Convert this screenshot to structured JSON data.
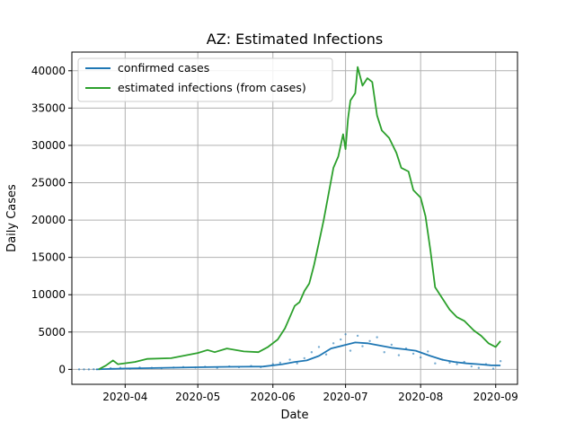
{
  "chart_data": {
    "type": "line",
    "title": "AZ: Estimated Infections",
    "xlabel": "Date",
    "ylabel": "Daily Cases",
    "x_ticks": [
      "2020-04",
      "2020-05",
      "2020-06",
      "2020-07",
      "2020-08",
      "2020-09"
    ],
    "y_ticks": [
      0,
      5000,
      10000,
      15000,
      20000,
      25000,
      30000,
      35000,
      40000
    ],
    "xlim": [
      "2020-03-10",
      "2020-09-10"
    ],
    "ylim": [
      -2000,
      42500
    ],
    "grid": true,
    "legend_position": "top-left",
    "series": [
      {
        "name": "confirmed cases",
        "color": "#1f77b4",
        "points": [
          [
            "2020-03-20",
            0
          ],
          [
            "2020-03-25",
            60
          ],
          [
            "2020-04-01",
            120
          ],
          [
            "2020-04-10",
            170
          ],
          [
            "2020-04-20",
            220
          ],
          [
            "2020-05-01",
            280
          ],
          [
            "2020-05-10",
            330
          ],
          [
            "2020-05-20",
            360
          ],
          [
            "2020-05-28",
            380
          ],
          [
            "2020-06-05",
            700
          ],
          [
            "2020-06-10",
            1000
          ],
          [
            "2020-06-15",
            1200
          ],
          [
            "2020-06-20",
            1800
          ],
          [
            "2020-06-25",
            2800
          ],
          [
            "2020-06-30",
            3200
          ],
          [
            "2020-07-05",
            3600
          ],
          [
            "2020-07-10",
            3500
          ],
          [
            "2020-07-15",
            3200
          ],
          [
            "2020-07-20",
            2900
          ],
          [
            "2020-07-25",
            2700
          ],
          [
            "2020-07-30",
            2500
          ],
          [
            "2020-08-05",
            1800
          ],
          [
            "2020-08-10",
            1300
          ],
          [
            "2020-08-15",
            1000
          ],
          [
            "2020-08-20",
            800
          ],
          [
            "2020-08-25",
            700
          ],
          [
            "2020-08-30",
            550
          ],
          [
            "2020-09-03",
            520
          ]
        ]
      },
      {
        "name": "estimated infections (from cases)",
        "color": "#2ca02c",
        "points": [
          [
            "2020-03-21",
            0
          ],
          [
            "2020-03-24",
            500
          ],
          [
            "2020-03-27",
            1200
          ],
          [
            "2020-03-29",
            700
          ],
          [
            "2020-04-05",
            1000
          ],
          [
            "2020-04-10",
            1400
          ],
          [
            "2020-04-20",
            1500
          ],
          [
            "2020-05-01",
            2200
          ],
          [
            "2020-05-05",
            2600
          ],
          [
            "2020-05-08",
            2300
          ],
          [
            "2020-05-13",
            2800
          ],
          [
            "2020-05-20",
            2400
          ],
          [
            "2020-05-26",
            2300
          ],
          [
            "2020-05-30",
            3000
          ],
          [
            "2020-06-03",
            4000
          ],
          [
            "2020-06-06",
            5500
          ],
          [
            "2020-06-08",
            7000
          ],
          [
            "2020-06-10",
            8500
          ],
          [
            "2020-06-12",
            9000
          ],
          [
            "2020-06-14",
            10500
          ],
          [
            "2020-06-16",
            11500
          ],
          [
            "2020-06-18",
            14000
          ],
          [
            "2020-06-20",
            17000
          ],
          [
            "2020-06-22",
            20000
          ],
          [
            "2020-06-24",
            23500
          ],
          [
            "2020-06-26",
            27000
          ],
          [
            "2020-06-28",
            28500
          ],
          [
            "2020-06-30",
            31500
          ],
          [
            "2020-07-01",
            29500
          ],
          [
            "2020-07-02",
            33500
          ],
          [
            "2020-07-03",
            36000
          ],
          [
            "2020-07-05",
            37000
          ],
          [
            "2020-07-06",
            40500
          ],
          [
            "2020-07-08",
            38000
          ],
          [
            "2020-07-10",
            39000
          ],
          [
            "2020-07-12",
            38500
          ],
          [
            "2020-07-14",
            34000
          ],
          [
            "2020-07-16",
            32000
          ],
          [
            "2020-07-19",
            31000
          ],
          [
            "2020-07-22",
            29000
          ],
          [
            "2020-07-24",
            27000
          ],
          [
            "2020-07-27",
            26500
          ],
          [
            "2020-07-29",
            24000
          ],
          [
            "2020-08-01",
            23000
          ],
          [
            "2020-08-03",
            20500
          ],
          [
            "2020-08-05",
            16000
          ],
          [
            "2020-08-07",
            11000
          ],
          [
            "2020-08-10",
            9500
          ],
          [
            "2020-08-13",
            8000
          ],
          [
            "2020-08-16",
            7000
          ],
          [
            "2020-08-19",
            6500
          ],
          [
            "2020-08-23",
            5200
          ],
          [
            "2020-08-26",
            4500
          ],
          [
            "2020-08-29",
            3500
          ],
          [
            "2020-09-01",
            3000
          ],
          [
            "2020-09-03",
            3800
          ]
        ]
      }
    ],
    "scatter": {
      "color": "#1f77b4",
      "points": [
        [
          "2020-03-13",
          0
        ],
        [
          "2020-03-15",
          0
        ],
        [
          "2020-03-17",
          0
        ],
        [
          "2020-03-19",
          20
        ],
        [
          "2020-03-22",
          100
        ],
        [
          "2020-03-26",
          150
        ],
        [
          "2020-03-30",
          200
        ],
        [
          "2020-04-03",
          100
        ],
        [
          "2020-04-07",
          250
        ],
        [
          "2020-04-12",
          200
        ],
        [
          "2020-04-16",
          150
        ],
        [
          "2020-04-21",
          250
        ],
        [
          "2020-04-25",
          300
        ],
        [
          "2020-04-30",
          250
        ],
        [
          "2020-05-04",
          350
        ],
        [
          "2020-05-09",
          200
        ],
        [
          "2020-05-14",
          400
        ],
        [
          "2020-05-18",
          300
        ],
        [
          "2020-05-23",
          450
        ],
        [
          "2020-05-27",
          300
        ],
        [
          "2020-06-01",
          700
        ],
        [
          "2020-06-04",
          900
        ],
        [
          "2020-06-08",
          1300
        ],
        [
          "2020-06-11",
          800
        ],
        [
          "2020-06-14",
          1500
        ],
        [
          "2020-06-17",
          2300
        ],
        [
          "2020-06-20",
          3000
        ],
        [
          "2020-06-23",
          2000
        ],
        [
          "2020-06-26",
          3500
        ],
        [
          "2020-06-29",
          4000
        ],
        [
          "2020-07-01",
          4700
        ],
        [
          "2020-07-03",
          2500
        ],
        [
          "2020-07-06",
          4500
        ],
        [
          "2020-07-08",
          3100
        ],
        [
          "2020-07-11",
          3800
        ],
        [
          "2020-07-14",
          4300
        ],
        [
          "2020-07-17",
          2300
        ],
        [
          "2020-07-20",
          3300
        ],
        [
          "2020-07-23",
          1900
        ],
        [
          "2020-07-26",
          2800
        ],
        [
          "2020-07-29",
          2100
        ],
        [
          "2020-08-01",
          1600
        ],
        [
          "2020-08-04",
          2400
        ],
        [
          "2020-08-07",
          800
        ],
        [
          "2020-08-10",
          1300
        ],
        [
          "2020-08-13",
          900
        ],
        [
          "2020-08-16",
          700
        ],
        [
          "2020-08-19",
          1000
        ],
        [
          "2020-08-22",
          400
        ],
        [
          "2020-08-25",
          200
        ],
        [
          "2020-08-28",
          700
        ],
        [
          "2020-08-31",
          100
        ],
        [
          "2020-09-03",
          1100
        ]
      ]
    }
  }
}
